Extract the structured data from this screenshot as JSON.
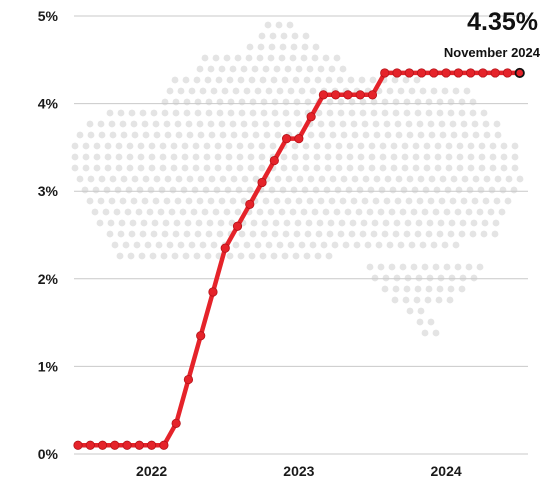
{
  "callout": {
    "value": "4.35%",
    "date": "November 2024"
  },
  "colors": {
    "line": "#e5232a",
    "marker_edge": "#b51218",
    "grid": "#c9c9c9",
    "map_dots": "#e4e4e4",
    "axis_text": "#1a1a1a"
  },
  "background_graphic": "australia-dot-map",
  "chart_data": {
    "type": "line",
    "title": "",
    "xlabel": "",
    "ylabel": "",
    "ylim": [
      0,
      5
    ],
    "yticks": [
      "0%",
      "1%",
      "2%",
      "3%",
      "4%",
      "5%"
    ],
    "xticks": [
      "2022",
      "2023",
      "2024"
    ],
    "grid": true,
    "series": [
      {
        "points": [
          [
            "2021-11",
            0.1
          ],
          [
            "2021-12",
            0.1
          ],
          [
            "2022-01",
            0.1
          ],
          [
            "2022-02",
            0.1
          ],
          [
            "2022-03",
            0.1
          ],
          [
            "2022-04",
            0.1
          ],
          [
            "2022-05",
            0.1
          ],
          [
            "2022-06",
            0.1
          ],
          [
            "2022-07",
            0.35
          ],
          [
            "2022-08",
            0.85
          ],
          [
            "2022-09",
            1.35
          ],
          [
            "2022-10",
            1.85
          ],
          [
            "2022-11",
            2.35
          ],
          [
            "2022-12",
            2.6
          ],
          [
            "2023-01",
            2.85
          ],
          [
            "2023-02",
            3.1
          ],
          [
            "2023-03",
            3.35
          ],
          [
            "2023-04",
            3.6
          ],
          [
            "2023-05",
            3.6
          ],
          [
            "2023-06",
            3.85
          ],
          [
            "2023-07",
            4.1
          ],
          [
            "2023-08",
            4.1
          ],
          [
            "2023-09",
            4.1
          ],
          [
            "2023-10",
            4.1
          ],
          [
            "2023-11",
            4.1
          ],
          [
            "2023-12",
            4.35
          ],
          [
            "2024-01",
            4.35
          ],
          [
            "2024-02",
            4.35
          ],
          [
            "2024-03",
            4.35
          ],
          [
            "2024-04",
            4.35
          ],
          [
            "2024-05",
            4.35
          ],
          [
            "2024-06",
            4.35
          ],
          [
            "2024-07",
            4.35
          ],
          [
            "2024-08",
            4.35
          ],
          [
            "2024-09",
            4.35
          ],
          [
            "2024-10",
            4.35
          ],
          [
            "2024-11",
            4.35
          ]
        ]
      }
    ]
  }
}
